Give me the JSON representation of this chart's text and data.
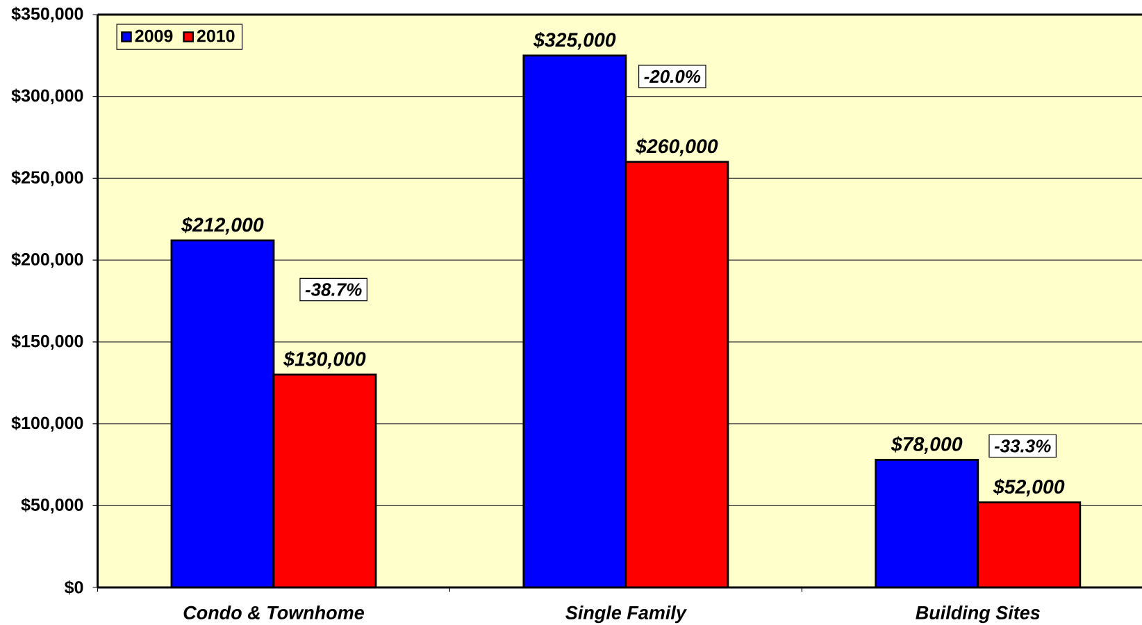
{
  "chart_data": {
    "type": "bar",
    "categories": [
      "Condo & Townhome",
      "Single Family",
      "Building Sites"
    ],
    "series": [
      {
        "name": "2009",
        "color": "#0000ff",
        "values": [
          212000,
          325000,
          78000
        ],
        "value_labels": [
          "$212,000",
          "$325,000",
          "$78,000"
        ]
      },
      {
        "name": "2010",
        "color": "#ff0000",
        "values": [
          130000,
          260000,
          52000
        ],
        "value_labels": [
          "$130,000",
          "$260,000",
          "$52,000"
        ]
      }
    ],
    "ylim": [
      0,
      350000
    ],
    "yticks": [
      {
        "value": 0,
        "label": "$0"
      },
      {
        "value": 50000,
        "label": "$50,000"
      },
      {
        "value": 100000,
        "label": "$100,000"
      },
      {
        "value": 150000,
        "label": "$150,000"
      },
      {
        "value": 200000,
        "label": "$200,000"
      },
      {
        "value": 250000,
        "label": "$250,000"
      },
      {
        "value": 300000,
        "label": "$300,000"
      },
      {
        "value": 350000,
        "label": "$350,000"
      }
    ],
    "grid": "y",
    "legend": "top left",
    "annotations": [
      "-38.7%",
      "-20.0%",
      "-33.3%"
    ]
  }
}
